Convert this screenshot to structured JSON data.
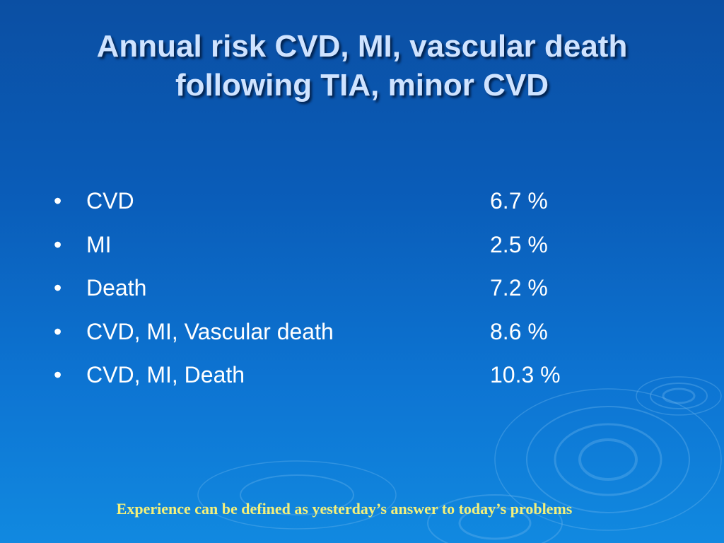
{
  "slide": {
    "title_line1": "Annual risk CVD, MI, vascular death",
    "title_line2": "following TIA, minor CVD",
    "bullet_symbol": "•",
    "items": [
      {
        "label": "CVD",
        "value": "6.7 %"
      },
      {
        "label": "MI",
        "value": "2.5 %"
      },
      {
        "label": "Death",
        "value": "7.2 %"
      },
      {
        "label": "CVD, MI, Vascular death",
        "value": "8.6 %"
      },
      {
        "label": "CVD, MI, Death",
        "value": "10.3 %"
      }
    ],
    "quote": "Experience can be defined as yesterday’s answer to today’s problems"
  },
  "colors": {
    "background_top": "#0b4fa3",
    "background_bottom": "#1189e0",
    "title": "#cfe3ff",
    "body_text": "#ffffff",
    "quote": "#f3f07a"
  }
}
